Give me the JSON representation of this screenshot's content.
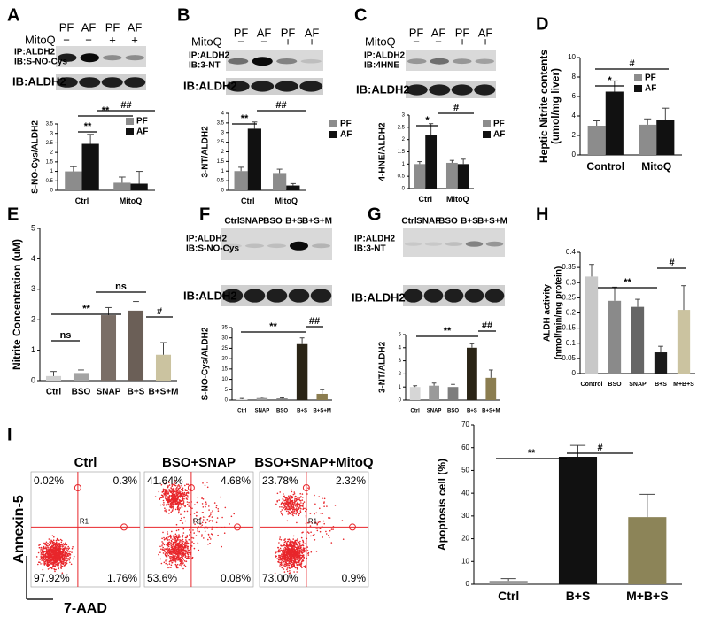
{
  "panels": [
    "A",
    "B",
    "C",
    "D",
    "E",
    "F",
    "G",
    "H",
    "I"
  ],
  "blots": {
    "A": {
      "lanes": [
        "PF",
        "AF",
        "PF",
        "AF"
      ],
      "treatment": "MitoQ",
      "signs": [
        "−",
        "−",
        "+",
        "+"
      ],
      "probe": [
        "IP:ALDH2",
        "IB:S-NO-Cys"
      ],
      "loading": "IB:ALDH2"
    },
    "B": {
      "lanes": [
        "PF",
        "AF",
        "PF",
        "AF"
      ],
      "treatment": "MitoQ",
      "signs": [
        "−",
        "−",
        "+",
        "+"
      ],
      "probe": [
        "IP:ALDH2",
        "IB:3-NT"
      ],
      "loading": "IB:ALDH2"
    },
    "C": {
      "lanes": [
        "PF",
        "AF",
        "PF",
        "AF"
      ],
      "treatment": "MitoQ",
      "signs": [
        "−",
        "−",
        "+",
        "+"
      ],
      "probe": [
        "IP:ALDH2",
        "IB:4HNE"
      ],
      "loading": "IB:ALDH2"
    },
    "F": {
      "lanes": [
        "Ctrl",
        "SNAP",
        "BSO",
        "B+S",
        "B+S+M"
      ],
      "probe": [
        "IP:ALDH2",
        "IB:S-NO-Cys"
      ],
      "loading": "IB:ALDH2"
    },
    "G": {
      "lanes": [
        "Ctrl",
        "SNAP",
        "BSO",
        "B+S",
        "B+S+M"
      ],
      "probe": [
        "IP:ALDH2",
        "IB:3-NT"
      ],
      "loading": "IB:ALDH2"
    }
  },
  "flow": {
    "y_label": "Annexin-5",
    "x_label": "7-AAD",
    "plots": [
      {
        "title": "Ctrl",
        "quadrants": [
          "0.02%",
          "0.3%",
          "97.92%",
          "1.76%"
        ],
        "gate": "R1"
      },
      {
        "title": "BSO+SNAP",
        "quadrants": [
          "41.64%",
          "4.68%",
          "53.6%",
          "0.08%"
        ],
        "gate": "R1"
      },
      {
        "title": "BSO+SNAP+MitoQ",
        "quadrants": [
          "23.78%",
          "2.32%",
          "73.00%",
          "0.9%"
        ],
        "gate": "R1"
      }
    ]
  },
  "chart_data": [
    {
      "type": "bar",
      "ylabel": "S-NO-Cys/ALDH2",
      "categories": [
        "Ctrl",
        "MitoQ"
      ],
      "series": [
        {
          "name": "PF",
          "color": "#8c8c8c",
          "values": [
            1.0,
            0.4
          ],
          "errors": [
            0.25,
            0.3
          ]
        },
        {
          "name": "AF",
          "color": "#111111",
          "values": [
            2.45,
            0.35
          ],
          "errors": [
            0.5,
            0.65
          ]
        }
      ],
      "ylim": [
        0,
        3.5
      ],
      "yticks": [
        0,
        0.5,
        1,
        1.5,
        2,
        2.5,
        3,
        3.5
      ],
      "legend": "upper right",
      "annotations": [
        "**",
        "**",
        "##"
      ]
    },
    {
      "type": "bar",
      "ylabel": "3-NT/ALDH2",
      "categories": [
        "Ctrl",
        "MitoQ"
      ],
      "series": [
        {
          "name": "PF",
          "color": "#8c8c8c",
          "values": [
            1.0,
            0.9
          ],
          "errors": [
            0.2,
            0.2
          ]
        },
        {
          "name": "AF",
          "color": "#111111",
          "values": [
            3.2,
            0.25
          ],
          "errors": [
            0.35,
            0.1
          ]
        }
      ],
      "ylim": [
        0,
        4
      ],
      "yticks": [
        0,
        0.5,
        1,
        1.5,
        2,
        2.5,
        3,
        3.5,
        4
      ],
      "legend": "upper right",
      "annotations": [
        "**",
        "##"
      ]
    },
    {
      "type": "bar",
      "ylabel": "4-HNE/ALDH2",
      "categories": [
        "Ctrl",
        "MitoQ"
      ],
      "series": [
        {
          "name": "PF",
          "color": "#8c8c8c",
          "values": [
            1.0,
            1.05
          ],
          "errors": [
            0.1,
            0.1
          ]
        },
        {
          "name": "AF",
          "color": "#111111",
          "values": [
            2.2,
            1.0
          ],
          "errors": [
            0.45,
            0.2
          ]
        }
      ],
      "ylim": [
        0,
        3
      ],
      "yticks": [
        0,
        0.5,
        1,
        1.5,
        2,
        2.5,
        3
      ],
      "legend": "upper right",
      "annotations": [
        "*",
        "#"
      ]
    },
    {
      "type": "bar",
      "ylabel": [
        "Heptic Nitrite contents",
        "(umol/mg liver)"
      ],
      "categories": [
        "Control",
        "MitoQ"
      ],
      "series": [
        {
          "name": "PF",
          "color": "#8c8c8c",
          "values": [
            3.0,
            3.1
          ],
          "errors": [
            0.5,
            0.6
          ]
        },
        {
          "name": "AF",
          "color": "#111111",
          "values": [
            6.5,
            3.6
          ],
          "errors": [
            1.1,
            1.2
          ]
        }
      ],
      "ylim": [
        0,
        10
      ],
      "yticks": [
        0,
        2,
        4,
        6,
        8,
        10
      ],
      "legend": "upper right",
      "annotations": [
        "*",
        "#"
      ]
    },
    {
      "type": "bar",
      "ylabel": "Nitrite Concentration (uM)",
      "categories": [
        "Ctrl",
        "BSO",
        "SNAP",
        "B+S",
        "B+S+M"
      ],
      "values": [
        0.15,
        0.25,
        2.15,
        2.3,
        0.85
      ],
      "errors": [
        0.15,
        0.1,
        0.25,
        0.3,
        0.4
      ],
      "colors": [
        "#d0d0d0",
        "#a3a3a3",
        "#7a6e66",
        "#6b5f57",
        "#cbc3a0"
      ],
      "ylim": [
        0,
        5
      ],
      "yticks": [
        0,
        1,
        2,
        3,
        4,
        5
      ],
      "annotations": [
        "ns",
        "**",
        "ns",
        "#"
      ]
    },
    {
      "type": "bar",
      "ylabel": "S-NO-Cys/ALDH2",
      "categories": [
        "Ctrl",
        "SNAP",
        "BSO",
        "B+S",
        "B+S+M"
      ],
      "values": [
        0.5,
        1.0,
        0.8,
        27,
        3
      ],
      "errors": [
        0.3,
        0.4,
        0.3,
        3,
        2
      ],
      "colors": [
        "#e0e0e0",
        "#9a9a9a",
        "#7d7d7d",
        "#2a2416",
        "#8b7d50"
      ],
      "ylim": [
        0,
        35
      ],
      "yticks": [
        0,
        5,
        10,
        15,
        20,
        25,
        30,
        35
      ],
      "annotations": [
        "**",
        "##"
      ]
    },
    {
      "type": "bar",
      "ylabel": "3-NT/ALDH2",
      "categories": [
        "Ctrl",
        "SNAP",
        "BSO",
        "B+S",
        "B+S+M"
      ],
      "values": [
        1.0,
        1.1,
        1.0,
        4.0,
        1.7
      ],
      "errors": [
        0.1,
        0.2,
        0.2,
        0.3,
        0.6
      ],
      "colors": [
        "#d6d6d6",
        "#9a9a9a",
        "#7d7d7d",
        "#2a2416",
        "#8b7d50"
      ],
      "ylim": [
        0,
        5
      ],
      "yticks": [
        0,
        1,
        2,
        3,
        4,
        5
      ],
      "annotations": [
        "**",
        "##"
      ]
    },
    {
      "type": "bar",
      "ylabel": [
        "ALDH activity",
        "(nmol/min/mg protein)"
      ],
      "categories": [
        "Control",
        "BSO",
        "SNAP",
        "B+S",
        "M+B+S"
      ],
      "values": [
        0.32,
        0.24,
        0.22,
        0.07,
        0.21
      ],
      "errors": [
        0.04,
        0.045,
        0.025,
        0.02,
        0.08
      ],
      "colors": [
        "#c8c8c8",
        "#8a8a8a",
        "#666666",
        "#1a1a1a",
        "#cbc3a0"
      ],
      "ylim": [
        0,
        0.4
      ],
      "yticks": [
        0,
        0.05,
        0.1,
        0.15,
        0.2,
        0.25,
        0.3,
        0.35,
        0.4
      ],
      "annotations": [
        "**",
        "#"
      ]
    },
    {
      "type": "bar",
      "ylabel": "Apoptosis cell (%)",
      "categories": [
        "Ctrl",
        "B+S",
        "M+B+S"
      ],
      "values": [
        1.5,
        56,
        29.5
      ],
      "errors": [
        1,
        5,
        10
      ],
      "colors": [
        "#9a9a9a",
        "#111111",
        "#8c8458"
      ],
      "ylim": [
        0,
        70
      ],
      "yticks": [
        0,
        10,
        20,
        30,
        40,
        50,
        60,
        70
      ],
      "annotations": [
        "**",
        "#"
      ]
    }
  ]
}
